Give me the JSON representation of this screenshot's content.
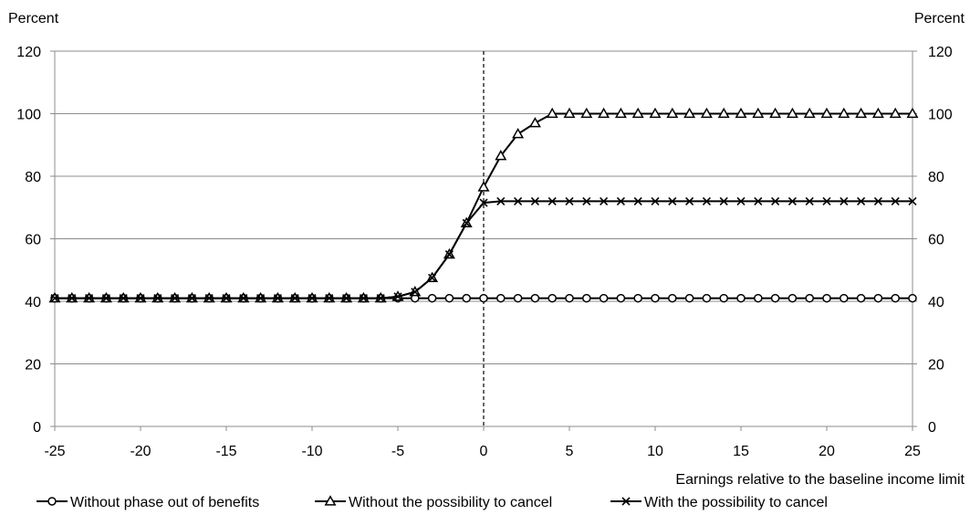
{
  "chart_data": {
    "type": "line",
    "title": "",
    "xlabel": "Earnings relative to the baseline income limit",
    "ylabel_left": "Percent",
    "ylabel_right": "Percent",
    "xlim": [
      -25,
      25
    ],
    "ylim": [
      0,
      120
    ],
    "x_ticks": [
      -25,
      -20,
      -15,
      -10,
      -5,
      0,
      5,
      10,
      15,
      20,
      25
    ],
    "y_ticks": [
      0,
      20,
      40,
      60,
      80,
      100,
      120
    ],
    "grid": "horizontal",
    "reference_line": {
      "x": 0,
      "style": "dashed"
    },
    "legend_position": "bottom",
    "x": [
      -25,
      -24,
      -23,
      -22,
      -21,
      -20,
      -19,
      -18,
      -17,
      -16,
      -15,
      -14,
      -13,
      -12,
      -11,
      -10,
      -9,
      -8,
      -7,
      -6,
      -5,
      -4,
      -3,
      -2,
      -1,
      0,
      1,
      2,
      3,
      4,
      5,
      6,
      7,
      8,
      9,
      10,
      11,
      12,
      13,
      14,
      15,
      16,
      17,
      18,
      19,
      20,
      21,
      22,
      23,
      24,
      25
    ],
    "series": [
      {
        "name": "Without phase out of benefits",
        "marker": "circle",
        "values": [
          41,
          41,
          41,
          41,
          41,
          41,
          41,
          41,
          41,
          41,
          41,
          41,
          41,
          41,
          41,
          41,
          41,
          41,
          41,
          41,
          41,
          41,
          41,
          41,
          41,
          41,
          41,
          41,
          41,
          41,
          41,
          41,
          41,
          41,
          41,
          41,
          41,
          41,
          41,
          41,
          41,
          41,
          41,
          41,
          41,
          41,
          41,
          41,
          41,
          41,
          41
        ]
      },
      {
        "name": "Without the possibility to cancel",
        "marker": "triangle",
        "values": [
          41,
          41,
          41,
          41,
          41,
          41,
          41,
          41,
          41,
          41,
          41,
          41,
          41,
          41,
          41,
          41,
          41,
          41,
          41,
          41,
          41.5,
          43,
          47.5,
          55,
          65,
          76.5,
          86.5,
          93.5,
          97,
          100,
          100,
          100,
          100,
          100,
          100,
          100,
          100,
          100,
          100,
          100,
          100,
          100,
          100,
          100,
          100,
          100,
          100,
          100,
          100,
          100,
          100
        ]
      },
      {
        "name": "With the possibility to cancel",
        "marker": "x",
        "values": [
          41,
          41,
          41,
          41,
          41,
          41,
          41,
          41,
          41,
          41,
          41,
          41,
          41,
          41,
          41,
          41,
          41,
          41,
          41,
          41,
          41.5,
          43,
          47.5,
          55,
          65,
          71.5,
          72,
          72,
          72,
          72,
          72,
          72,
          72,
          72,
          72,
          72,
          72,
          72,
          72,
          72,
          72,
          72,
          72,
          72,
          72,
          72,
          72,
          72,
          72,
          72,
          72
        ]
      }
    ]
  }
}
